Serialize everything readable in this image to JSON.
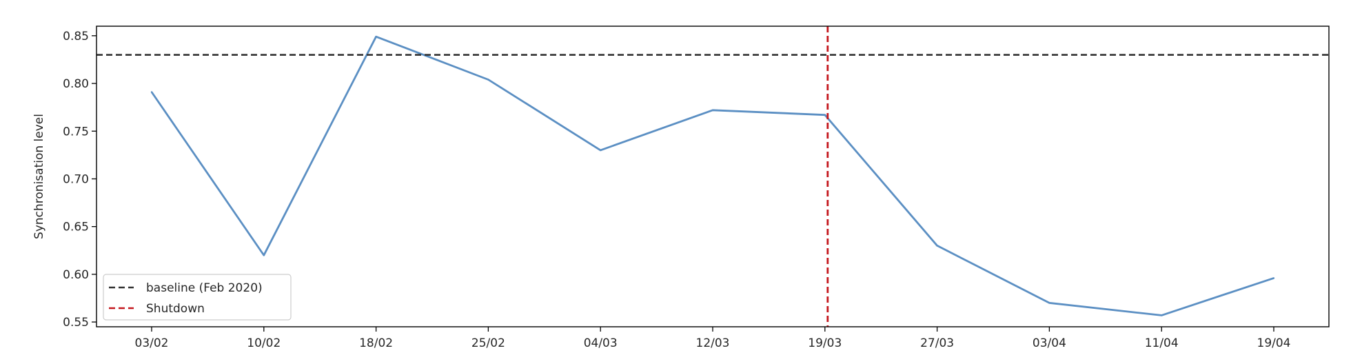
{
  "chart_data": {
    "type": "line",
    "title": "",
    "xlabel": "",
    "ylabel": "Synchronisation level",
    "x": [
      "03/02",
      "10/02",
      "18/02",
      "25/02",
      "04/03",
      "12/03",
      "19/03",
      "27/03",
      "03/04",
      "11/04",
      "19/04"
    ],
    "series": [
      {
        "values": [
          0.791,
          0.62,
          0.849,
          0.804,
          0.73,
          0.772,
          0.767,
          0.63,
          0.57,
          0.557,
          0.596
        ],
        "color": "#5b8fc3"
      }
    ],
    "reference_lines": [
      {
        "orientation": "horizontal",
        "value": 0.83,
        "label": "baseline (Feb 2020)",
        "color": "#333333",
        "style": "dashed"
      },
      {
        "orientation": "vertical",
        "at": "19/03",
        "label": "Shutdown",
        "color": "#c4161c",
        "style": "dashed"
      }
    ],
    "ylim": [
      0.545,
      0.86
    ],
    "yticks": [
      0.55,
      0.6,
      0.65,
      0.7,
      0.75,
      0.8,
      0.85
    ],
    "ytick_labels": [
      "0.55",
      "0.60",
      "0.65",
      "0.70",
      "0.75",
      "0.80",
      "0.85"
    ],
    "grid": false,
    "legend_position": "lower-left",
    "legend": [
      {
        "label": "baseline (Feb 2020)",
        "color": "#333333",
        "style": "dashed"
      },
      {
        "label": "Shutdown",
        "color": "#c4161c",
        "style": "dashed"
      }
    ]
  }
}
